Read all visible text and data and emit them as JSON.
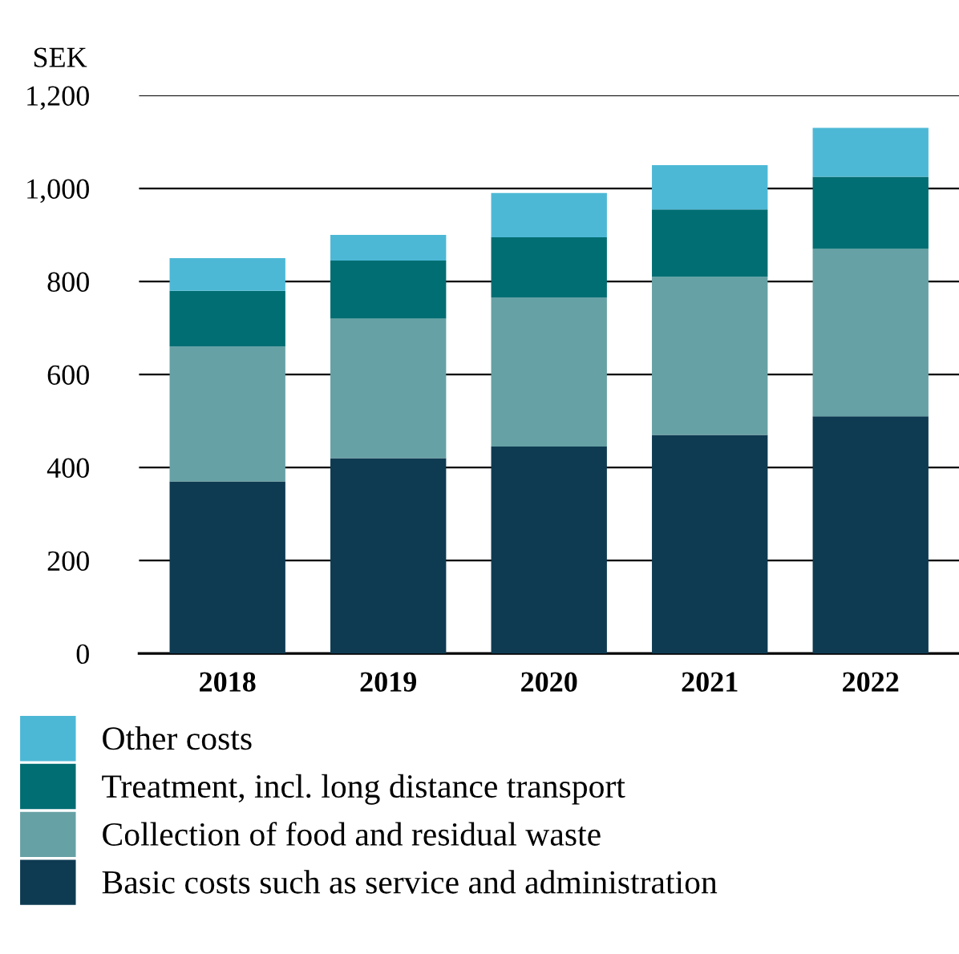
{
  "chart_data": {
    "type": "bar",
    "stacked": true,
    "ylabel": "SEK",
    "categories": [
      "2018",
      "2019",
      "2020",
      "2021",
      "2022"
    ],
    "series": [
      {
        "name": "Basic costs such as service and administration",
        "color": "#0e3b52",
        "values": [
          370,
          420,
          445,
          470,
          510
        ]
      },
      {
        "name": "Collection of food and residual waste",
        "color": "#66a1a5",
        "values": [
          290,
          300,
          320,
          340,
          360
        ]
      },
      {
        "name": "Treatment, incl. long distance transport",
        "color": "#006e73",
        "values": [
          120,
          125,
          130,
          145,
          155
        ]
      },
      {
        "name": "Other costs",
        "color": "#4db8d6",
        "values": [
          70,
          55,
          95,
          95,
          105
        ]
      }
    ],
    "ylim": [
      0,
      1200
    ],
    "yticks": [
      0,
      200,
      400,
      600,
      800,
      {
        "value": 1000,
        "label": "1,000"
      },
      {
        "value": 1200,
        "label": "1,200"
      }
    ],
    "grid": "y",
    "legend": "bottom"
  }
}
